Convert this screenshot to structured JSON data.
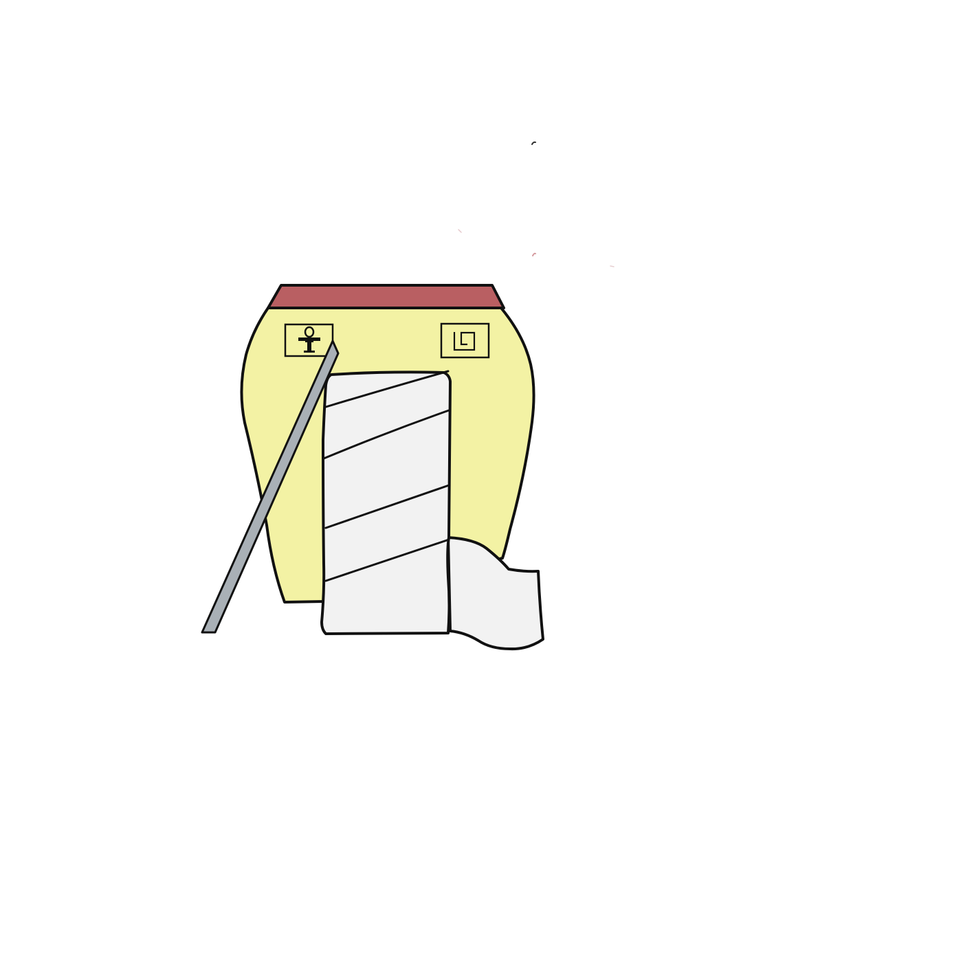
{
  "colors": {
    "background": "#ffffff",
    "outline": "#111111",
    "container_body": "#f3f2a4",
    "container_lid": "#b95f62",
    "stick_fill": "#a9b0b6",
    "wrap_fill": "#f2f2f2",
    "symbol": "#111111"
  },
  "icons": {
    "left_panel": "ankh-icon",
    "right_panel": "square-spiral-icon"
  }
}
